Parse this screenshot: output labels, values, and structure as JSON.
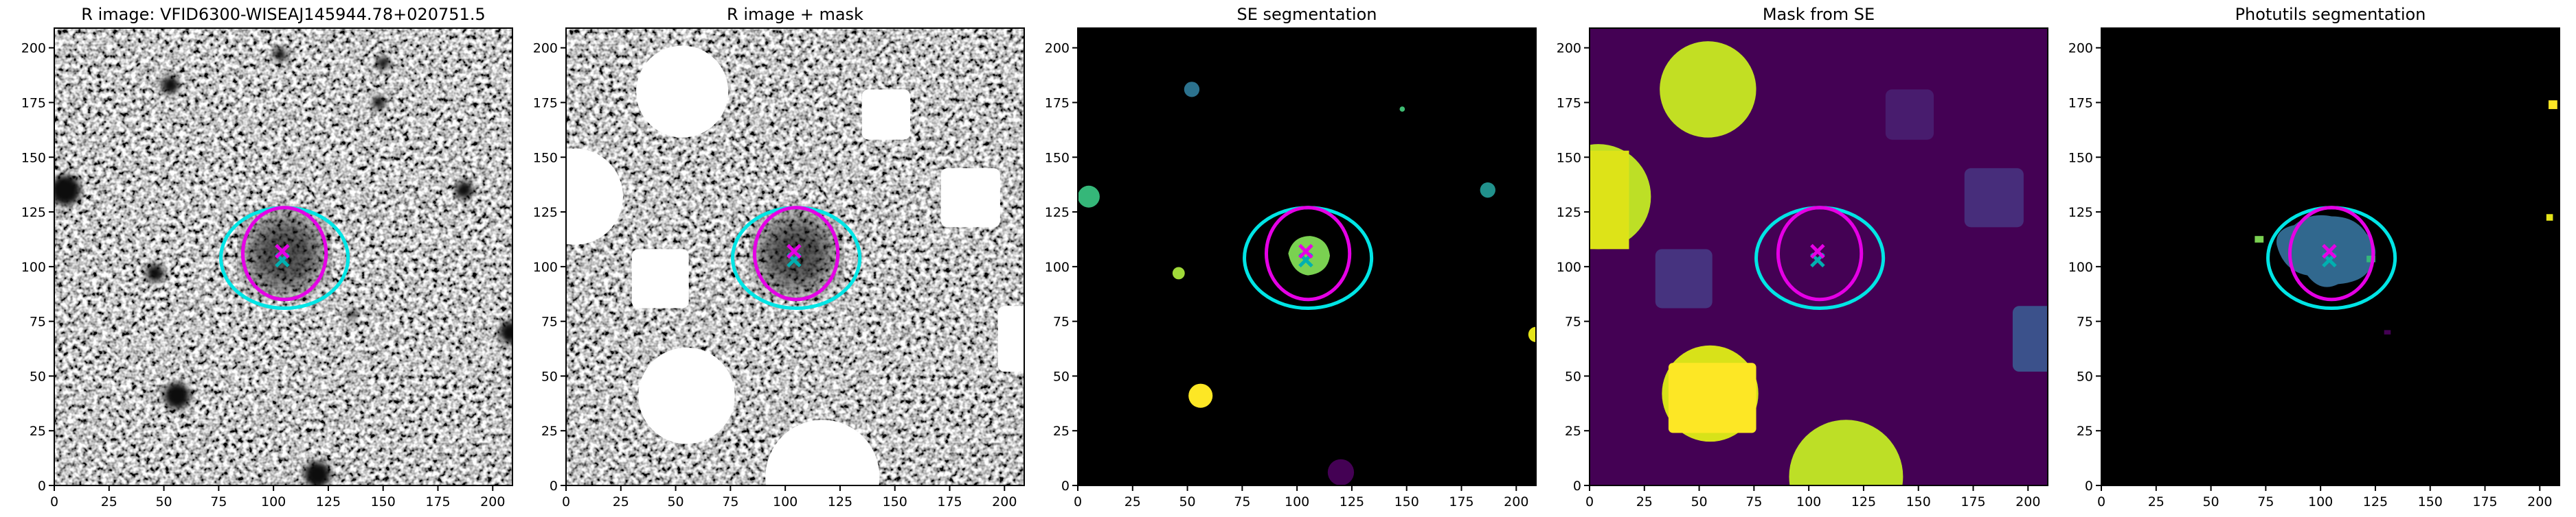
{
  "chart_data": [
    {
      "type": "image",
      "title": "R image: VFID6300-WISEAJ145944.78+020751.5",
      "xlim": [
        0,
        209
      ],
      "ylim": [
        0,
        209
      ],
      "xticks": [
        0,
        25,
        50,
        75,
        100,
        125,
        150,
        175,
        200
      ],
      "yticks": [
        0,
        25,
        50,
        75,
        100,
        125,
        150,
        175,
        200
      ],
      "apertures": [
        {
          "x": 105,
          "y": 104,
          "rx": 29,
          "ry": 23,
          "color": "#00e5e5"
        },
        {
          "x": 105,
          "y": 106,
          "rx": 19,
          "ry": 21,
          "color": "#e500e5"
        }
      ],
      "markers": [
        {
          "x": 104,
          "y": 103,
          "color": "#00b0b0"
        },
        {
          "x": 104,
          "y": 107,
          "color": "#e500e5"
        }
      ]
    },
    {
      "type": "image",
      "title": "R image + mask",
      "xlim": [
        0,
        209
      ],
      "ylim": [
        0,
        209
      ],
      "xticks": [
        0,
        25,
        50,
        75,
        100,
        125,
        150,
        175,
        200
      ],
      "yticks": [
        0,
        25,
        50,
        75,
        100,
        125,
        150,
        175,
        200
      ],
      "apertures": [
        {
          "x": 105,
          "y": 104,
          "rx": 29,
          "ry": 23,
          "color": "#00e5e5"
        },
        {
          "x": 105,
          "y": 106,
          "rx": 19,
          "ry": 21,
          "color": "#e500e5"
        }
      ],
      "markers": [
        {
          "x": 104,
          "y": 103,
          "color": "#00b0b0"
        },
        {
          "x": 104,
          "y": 107,
          "color": "#e500e5"
        }
      ]
    },
    {
      "type": "image",
      "title": "SE segmentation",
      "xlim": [
        0,
        209
      ],
      "ylim": [
        0,
        209
      ],
      "xticks": [
        0,
        25,
        50,
        75,
        100,
        125,
        150,
        175,
        200
      ],
      "yticks": [
        0,
        25,
        50,
        75,
        100,
        125,
        150,
        175,
        200
      ],
      "apertures": [
        {
          "x": 105,
          "y": 104,
          "rx": 29,
          "ry": 23,
          "color": "#00e5e5"
        },
        {
          "x": 105,
          "y": 106,
          "rx": 19,
          "ry": 21,
          "color": "#e500e5"
        }
      ],
      "markers": [
        {
          "x": 104,
          "y": 103,
          "color": "#00b0b0"
        },
        {
          "x": 104,
          "y": 107,
          "color": "#e500e5"
        }
      ]
    },
    {
      "type": "image",
      "title": "Mask from SE",
      "xlim": [
        0,
        209
      ],
      "ylim": [
        0,
        209
      ],
      "xticks": [
        0,
        25,
        50,
        75,
        100,
        125,
        150,
        175,
        200
      ],
      "yticks": [
        0,
        25,
        50,
        75,
        100,
        125,
        150,
        175,
        200
      ],
      "apertures": [
        {
          "x": 105,
          "y": 104,
          "rx": 29,
          "ry": 23,
          "color": "#00e5e5"
        },
        {
          "x": 105,
          "y": 106,
          "rx": 19,
          "ry": 21,
          "color": "#e500e5"
        }
      ],
      "markers": [
        {
          "x": 104,
          "y": 103,
          "color": "#00b0b0"
        },
        {
          "x": 104,
          "y": 107,
          "color": "#e500e5"
        }
      ]
    },
    {
      "type": "image",
      "title": "Photutils segmentation",
      "xlim": [
        0,
        209
      ],
      "ylim": [
        0,
        209
      ],
      "xticks": [
        0,
        25,
        50,
        75,
        100,
        125,
        150,
        175,
        200
      ],
      "yticks": [
        0,
        25,
        50,
        75,
        100,
        125,
        150,
        175,
        200
      ],
      "apertures": [
        {
          "x": 105,
          "y": 104,
          "rx": 29,
          "ry": 23,
          "color": "#00e5e5"
        },
        {
          "x": 105,
          "y": 106,
          "rx": 19,
          "ry": 21,
          "color": "#e500e5"
        }
      ],
      "markers": [
        {
          "x": 104,
          "y": 103,
          "color": "#00b0b0"
        },
        {
          "x": 104,
          "y": 107,
          "color": "#e500e5"
        }
      ]
    }
  ]
}
